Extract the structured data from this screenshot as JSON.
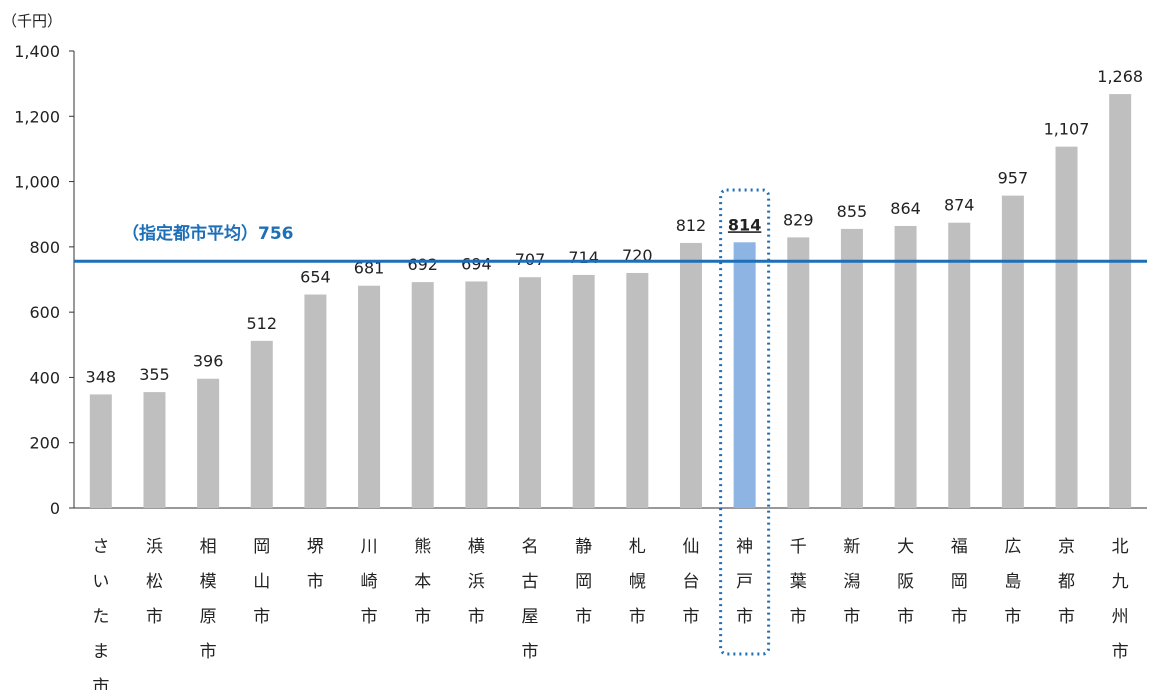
{
  "chart_data": {
    "type": "bar",
    "unit_label": "（千円）",
    "categories": [
      "さいたま市",
      "浜松市",
      "相模原市",
      "岡山市",
      "堺市",
      "川崎市",
      "熊本市",
      "横浜市",
      "名古屋市",
      "静岡市",
      "札幌市",
      "仙台市",
      "神戸市",
      "千葉市",
      "新潟市",
      "大阪市",
      "福岡市",
      "広島市",
      "京都市",
      "北九州市"
    ],
    "values": [
      348,
      355,
      396,
      512,
      654,
      681,
      692,
      694,
      707,
      714,
      720,
      812,
      814,
      829,
      855,
      864,
      874,
      957,
      1107,
      1268
    ],
    "value_labels": [
      "348",
      "355",
      "396",
      "512",
      "654",
      "681",
      "692",
      "694",
      "707",
      "714",
      "720",
      "812",
      "814",
      "829",
      "855",
      "864",
      "874",
      "957",
      "1,107",
      "1,268"
    ],
    "highlight_category": "神戸市",
    "ylim": [
      0,
      1400
    ],
    "yticks": [
      0,
      200,
      400,
      600,
      800,
      1000,
      1200,
      1400
    ],
    "ytick_labels": [
      "0",
      "200",
      "400",
      "600",
      "800",
      "1,000",
      "1,200",
      "1,400"
    ],
    "reference_line": {
      "value": 756,
      "label": "（指定都市平均）756"
    },
    "grid": false,
    "colors": {
      "bar": "#bfbfbf",
      "highlight_bar": "#8db4e2",
      "reference_line": "#1d6fb8",
      "highlight_box": "#1d6fb8",
      "axis": "#333333"
    }
  }
}
